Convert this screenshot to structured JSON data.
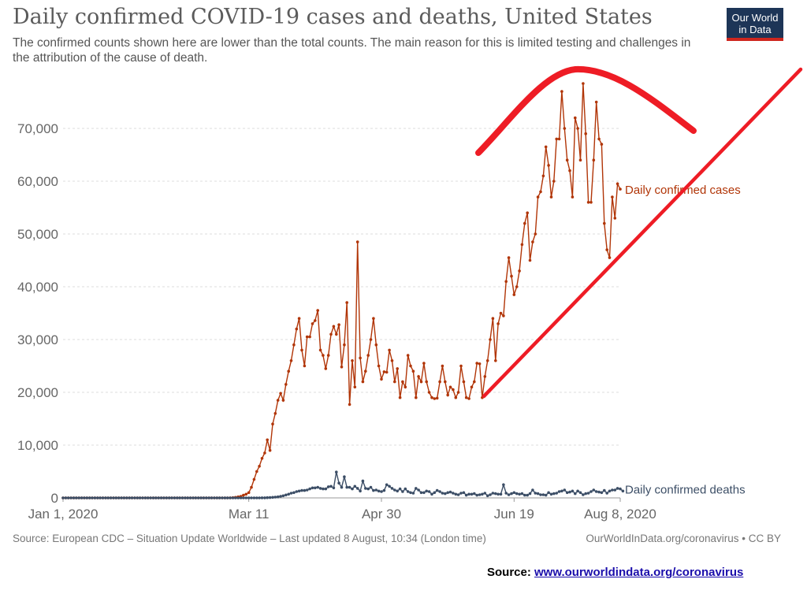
{
  "header": {
    "title": "Daily confirmed COVID-19 cases and deaths, United States",
    "subtitle": "The confirmed counts shown here are lower than the total counts. The main reason for this is limited testing and challenges in the attribution of the cause of death.",
    "logo_line1": "Our World",
    "logo_line2": "in Data"
  },
  "footer": {
    "source": "Source: European CDC – Situation Update Worldwide – Last updated 8 August, 10:34 (London time)",
    "link": "OurWorldInData.org/coronavirus • CC BY",
    "note_label": "Source: ",
    "note_url": "www.ourworldindata.org/coronavirus"
  },
  "colors": {
    "cases": "#b13507",
    "deaths": "#3c4e66",
    "annotation": "#ee1c25",
    "grid": "#dddddd",
    "axis_text": "#666666"
  },
  "chart_data": {
    "type": "line",
    "title": "Daily confirmed COVID-19 cases and deaths, United States",
    "xlabel": "",
    "ylabel": "",
    "x_ticks": [
      "Jan 1, 2020",
      "Mar 11",
      "Apr 30",
      "Jun 19",
      "Aug 8, 2020"
    ],
    "y_ticks": [
      "0",
      "10,000",
      "20,000",
      "30,000",
      "40,000",
      "50,000",
      "60,000",
      "70,000"
    ],
    "ylim": [
      0,
      78000
    ],
    "grid": "horizontal-dashed",
    "legend": "inline labels at line ends",
    "x_start": "2020-01-01",
    "x_end": "2020-08-08",
    "series": [
      {
        "name": "Daily confirmed cases",
        "values": [
          0,
          0,
          0,
          0,
          0,
          0,
          0,
          0,
          0,
          0,
          0,
          0,
          0,
          0,
          0,
          0,
          0,
          0,
          0,
          0,
          0,
          0,
          0,
          0,
          0,
          0,
          0,
          0,
          0,
          0,
          0,
          0,
          0,
          0,
          0,
          0,
          0,
          0,
          0,
          0,
          0,
          0,
          0,
          0,
          0,
          0,
          0,
          0,
          0,
          0,
          0,
          0,
          0,
          0,
          0,
          0,
          0,
          0,
          0,
          0,
          0,
          0,
          0,
          20,
          50,
          100,
          200,
          300,
          500,
          700,
          1000,
          2000,
          3500,
          5000,
          6000,
          7500,
          8500,
          11000,
          9000,
          14000,
          16000,
          18500,
          19800,
          18500,
          21500,
          24000,
          26000,
          29000,
          32000,
          34000,
          28000,
          25000,
          30500,
          30500,
          33000,
          33600,
          35500,
          28000,
          27000,
          24500,
          27000,
          31000,
          32500,
          31000,
          32800,
          24800,
          29000,
          37000,
          17700,
          26000,
          21000,
          48500,
          26500,
          22000,
          24000,
          27000,
          30000,
          34000,
          29000,
          25000,
          22500,
          23900,
          23800,
          28000,
          26000,
          22000,
          24500,
          19000,
          22000,
          21000,
          27000,
          25000,
          24000,
          19000,
          23000,
          22000,
          25500,
          22000,
          20000,
          19000,
          18800,
          18900,
          22000,
          25000,
          22000,
          19500,
          21000,
          20500,
          19000,
          20000,
          25000,
          22000,
          19000,
          18800,
          21000,
          22000,
          25500,
          25400,
          19000,
          23000,
          26000,
          30000,
          34000,
          26000,
          33000,
          35000,
          34500,
          41000,
          45500,
          42000,
          38500,
          40000,
          43000,
          48000,
          52000,
          54000,
          45000,
          48500,
          50000,
          57000,
          58000,
          61000,
          66500,
          63000,
          57000,
          60000,
          68000,
          68000,
          77000,
          70000,
          64000,
          62000,
          57000,
          72000,
          70000,
          64000,
          78500,
          69000,
          56000,
          56000,
          64000,
          75000,
          68000,
          67000,
          52000,
          47000,
          45500,
          57000,
          53000,
          59500,
          58500
        ]
      },
      {
        "name": "Daily confirmed deaths",
        "values": [
          0,
          0,
          0,
          0,
          0,
          0,
          0,
          0,
          0,
          0,
          0,
          0,
          0,
          0,
          0,
          0,
          0,
          0,
          0,
          0,
          0,
          0,
          0,
          0,
          0,
          0,
          0,
          0,
          0,
          0,
          0,
          0,
          0,
          0,
          0,
          0,
          0,
          0,
          0,
          0,
          0,
          0,
          0,
          0,
          0,
          0,
          0,
          0,
          0,
          0,
          0,
          0,
          0,
          0,
          0,
          0,
          0,
          0,
          0,
          0,
          0,
          0,
          0,
          0,
          0,
          0,
          0,
          0,
          0,
          0,
          0,
          0,
          0,
          0,
          5,
          10,
          20,
          40,
          60,
          100,
          150,
          200,
          300,
          400,
          550,
          700,
          900,
          1000,
          1200,
          1300,
          1400,
          1400,
          1500,
          1700,
          1900,
          1900,
          2000,
          1800,
          1700,
          1700,
          2100,
          2200,
          1900,
          4900,
          2800,
          2000,
          4000,
          2000,
          2000,
          1700,
          2200,
          1800,
          1300,
          3200,
          1800,
          1700,
          2000,
          1400,
          1500,
          1300,
          1200,
          1400,
          2500,
          2200,
          1800,
          1500,
          1300,
          1700,
          1200,
          1700,
          1200,
          1000,
          900,
          1800,
          1500,
          1000,
          1000,
          1300,
          1200,
          700,
          1000,
          1400,
          1200,
          900,
          800,
          1000,
          1100,
          900,
          700,
          600,
          900,
          1000,
          500,
          700,
          700,
          800,
          500,
          600,
          700,
          900,
          400,
          600,
          900,
          800,
          700,
          700,
          2500,
          900,
          600,
          800,
          1000,
          800,
          700,
          800,
          500,
          500,
          800,
          1500,
          900,
          800,
          600,
          600,
          500,
          1000,
          700,
          800,
          900,
          1200,
          1300,
          1500,
          1000,
          1100,
          1300,
          800,
          1300,
          1000,
          600,
          800,
          900,
          1200,
          1500,
          1200,
          1100,
          1000,
          1400,
          900,
          1300,
          1500,
          1500,
          1800,
          1700,
          1300
        ]
      }
    ]
  }
}
